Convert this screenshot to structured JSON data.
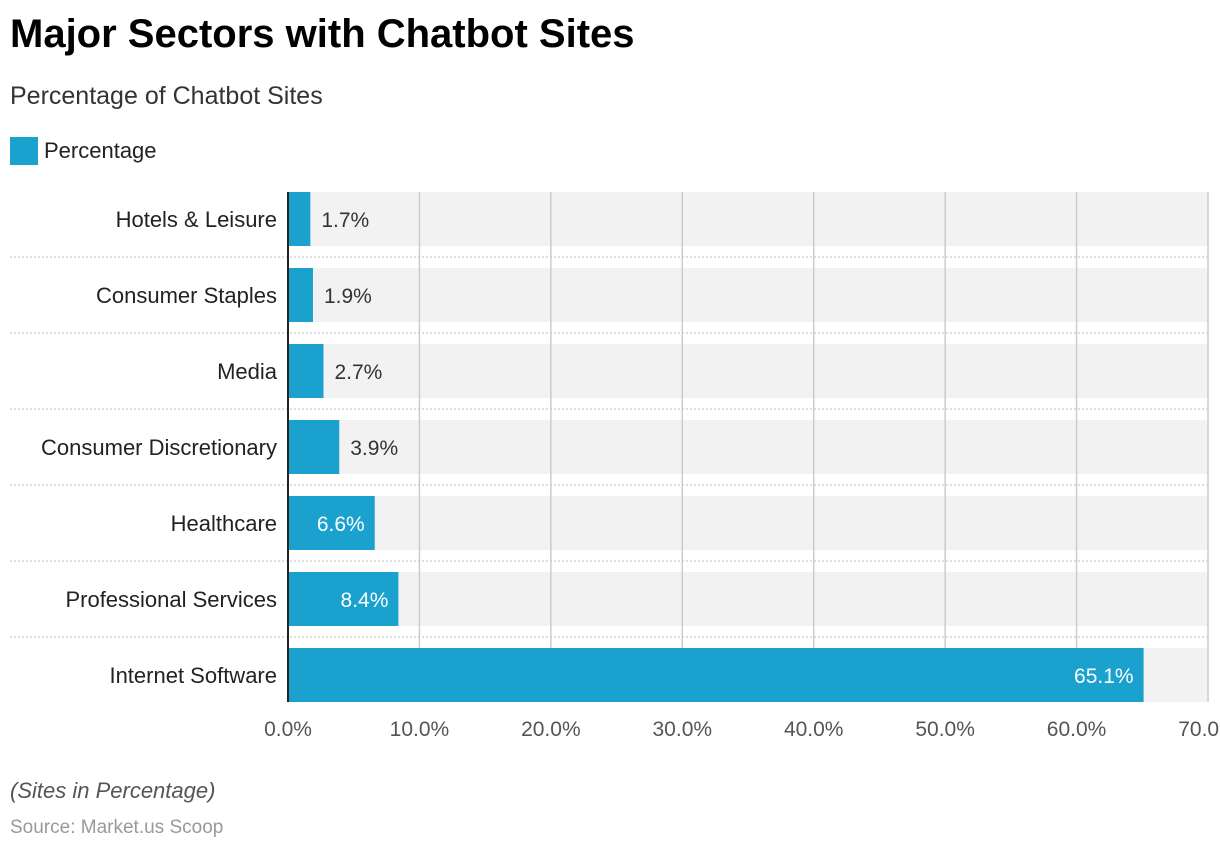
{
  "chart_data": {
    "type": "bar",
    "orientation": "horizontal",
    "title": "Major Sectors with Chatbot Sites",
    "subtitle": "Percentage of Chatbot Sites",
    "categories": [
      "Hotels & Leisure",
      "Consumer Staples",
      "Media",
      "Consumer Discretionary",
      "Healthcare",
      "Professional Services",
      "Internet Software"
    ],
    "series": [
      {
        "name": "Percentage",
        "values": [
          1.7,
          1.9,
          2.7,
          3.9,
          6.6,
          8.4,
          65.1
        ],
        "labels": [
          "1.7%",
          "1.9%",
          "2.7%",
          "3.9%",
          "6.6%",
          "8.4%",
          "65.1%"
        ]
      }
    ],
    "xlim": [
      0,
      70
    ],
    "xticks": [
      0,
      10,
      20,
      30,
      40,
      50,
      60,
      70
    ],
    "xtick_labels": [
      "0.0%",
      "10.0%",
      "20.0%",
      "30.0%",
      "40.0%",
      "50.0%",
      "60.0%",
      "70.0%"
    ],
    "grid": true,
    "legend": "top-left",
    "note": "(Sites in Percentage)",
    "source": "Source: Market.us Scoop",
    "colors": {
      "bar": "#1aa1cd",
      "band": "#f2f2f2",
      "grid": "#cccccc"
    }
  }
}
